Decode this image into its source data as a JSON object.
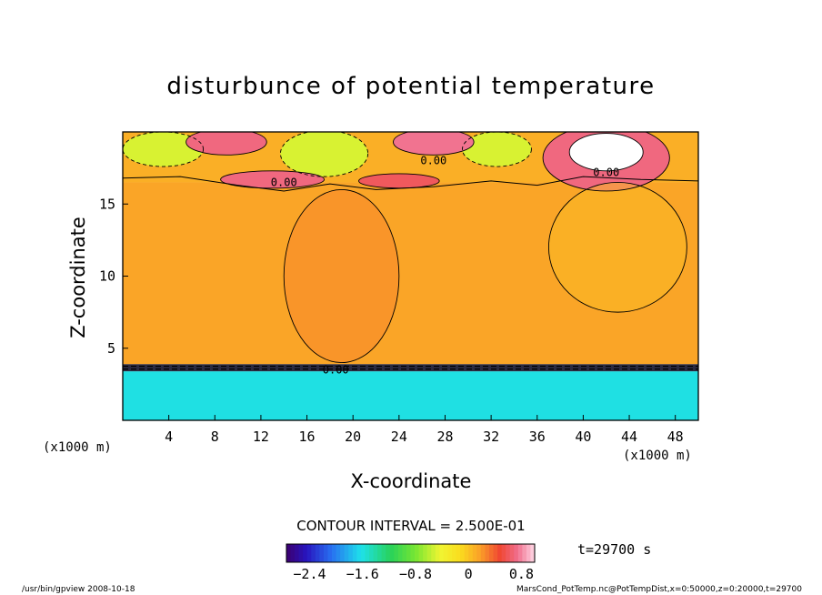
{
  "chart_data": {
    "type": "heatmap",
    "title": "disturbunce of potential temperature",
    "xlabel": "X-coordinate",
    "ylabel": "Z-coordinate",
    "x_unit": "(x1000 m)",
    "y_unit": "(x1000 m)",
    "xlim": [
      0,
      50
    ],
    "ylim": [
      0,
      20
    ],
    "x_ticks": [
      4,
      8,
      12,
      16,
      20,
      24,
      28,
      32,
      36,
      40,
      44,
      48
    ],
    "y_ticks": [
      5,
      10,
      15
    ],
    "contour_interval_text": "CONTOUR INTERVAL = 2.500E-01",
    "time_text": "t=29700 s",
    "contour_labels": [
      {
        "text": "0.00",
        "x": 14.0,
        "z": 16.5
      },
      {
        "text": "0.00",
        "x": 27.0,
        "z": 18.0
      },
      {
        "text": "0.00",
        "x": 42.0,
        "z": 17.2
      },
      {
        "text": "0.00",
        "x": 18.5,
        "z": 3.5
      }
    ],
    "colorbar": {
      "min": -2.75,
      "max": 1.0,
      "tick_values": [
        -2.4,
        -1.6,
        -0.8,
        0,
        0.8
      ],
      "tick_labels": [
        "−2.4",
        "−1.6",
        "−0.8",
        "0",
        "0.8"
      ]
    },
    "field_regions": [
      {
        "name": "lower layer",
        "value": -1.6,
        "x0": 0,
        "x1": 50,
        "z0": 0,
        "z1": 3.4
      },
      {
        "name": "transition",
        "value": -0.6,
        "x0": 0,
        "x1": 50,
        "z0": 3.4,
        "z1": 3.9
      },
      {
        "name": "middle layer",
        "value": 0.15,
        "x0": 0,
        "x1": 50,
        "z0": 3.9,
        "z1": 16.5
      },
      {
        "name": "upper layer",
        "value": 0.1,
        "x0": 0,
        "x1": 50,
        "z0": 16.5,
        "z1": 20
      }
    ],
    "field_features": [
      {
        "value": -0.5,
        "x": 3.5,
        "z": 18.8,
        "rx": 3.5,
        "rz": 1.2
      },
      {
        "value": -0.5,
        "x": 17.5,
        "z": 18.5,
        "rx": 3.8,
        "rz": 1.6
      },
      {
        "value": -0.5,
        "x": 32.5,
        "z": 18.8,
        "rx": 3.0,
        "rz": 1.2
      },
      {
        "value": 0.7,
        "x": 9.0,
        "z": 19.3,
        "rx": 3.5,
        "rz": 0.9
      },
      {
        "value": 0.75,
        "x": 27.0,
        "z": 19.3,
        "rx": 3.5,
        "rz": 0.9
      },
      {
        "value": 0.7,
        "x": 13.0,
        "z": 16.7,
        "rx": 4.5,
        "rz": 0.6
      },
      {
        "value": 0.6,
        "x": 24.0,
        "z": 16.6,
        "rx": 3.5,
        "rz": 0.5
      },
      {
        "value": 0.7,
        "x": 42.0,
        "z": 18.2,
        "rx": 5.5,
        "rz": 2.3
      },
      {
        "value": 1.0,
        "x": 42.0,
        "z": 18.6,
        "rx": 3.2,
        "rz": 1.3
      },
      {
        "value": 0.05,
        "x": 43.0,
        "z": 12.0,
        "rx": 6.0,
        "rz": 4.5
      },
      {
        "value": 0.25,
        "x": 19.0,
        "z": 10.0,
        "rx": 5.0,
        "rz": 6.0
      }
    ]
  },
  "footer": {
    "left": "/usr/bin/gpview   2008-10-18",
    "right": "MarsCond_PotTemp.nc@PotTempDist,x=0:50000,z=0:20000,t=29700"
  }
}
